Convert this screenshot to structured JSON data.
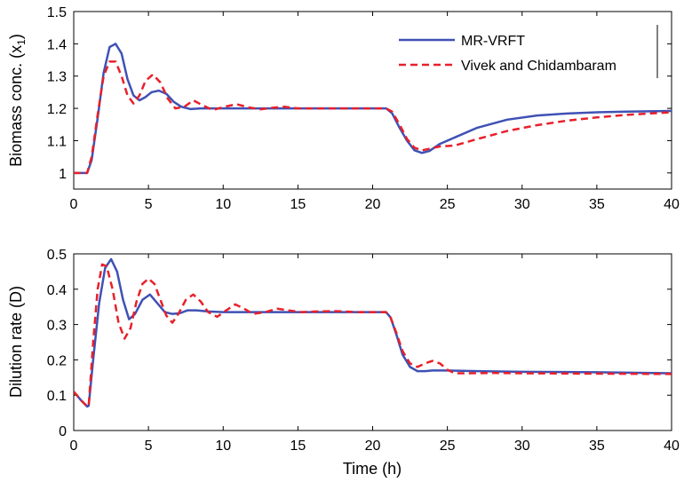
{
  "chart_data": [
    {
      "type": "line",
      "title": "",
      "xlabel": "",
      "ylabel": "Biomass conc. (x1)",
      "ylabel_main": "Biomass conc. (x",
      "ylabel_sub": "1",
      "ylabel_tail": ")",
      "xlim": [
        0,
        40
      ],
      "ylim": [
        0.95,
        1.5
      ],
      "xticks": [
        "0",
        "5",
        "10",
        "15",
        "20",
        "25",
        "30",
        "35",
        "40"
      ],
      "yticks": [
        "1",
        "1.1",
        "1.2",
        "1.3",
        "1.4",
        "1.5"
      ],
      "grid": false,
      "legend_position": "top-right",
      "series": [
        {
          "name": "MR-VRFT",
          "color": "#3f51b5",
          "style": "solid",
          "x": [
            0,
            0.9,
            1.2,
            1.6,
            2.0,
            2.4,
            2.8,
            3.2,
            3.6,
            4.0,
            4.4,
            4.8,
            5.2,
            5.7,
            6.2,
            6.7,
            7.2,
            7.8,
            8.5,
            10,
            12,
            15,
            18,
            20.9,
            21.3,
            21.8,
            22.3,
            22.8,
            23.3,
            23.8,
            24.5,
            25.5,
            27,
            29,
            31,
            33,
            35,
            37,
            40
          ],
          "y": [
            1.0,
            1.0,
            1.04,
            1.17,
            1.31,
            1.39,
            1.4,
            1.37,
            1.29,
            1.24,
            1.225,
            1.235,
            1.25,
            1.255,
            1.245,
            1.22,
            1.205,
            1.198,
            1.2,
            1.2,
            1.2,
            1.2,
            1.2,
            1.2,
            1.185,
            1.14,
            1.1,
            1.07,
            1.062,
            1.068,
            1.09,
            1.11,
            1.14,
            1.165,
            1.178,
            1.184,
            1.188,
            1.19,
            1.192
          ]
        },
        {
          "name": "Vivek and Chidambaram",
          "color": "#e8202a",
          "style": "dashed",
          "x": [
            0,
            0.9,
            1.2,
            1.6,
            2.0,
            2.4,
            2.8,
            3.2,
            3.6,
            4.0,
            4.4,
            4.8,
            5.3,
            5.8,
            6.3,
            6.8,
            7.4,
            8.0,
            8.6,
            9.3,
            10.1,
            10.9,
            11.7,
            12.5,
            13.3,
            14.1,
            15.0,
            16.5,
            18,
            20.9,
            21.3,
            21.8,
            22.3,
            22.8,
            23.3,
            23.8,
            24.5,
            25.5,
            27,
            29,
            31,
            33,
            35,
            37,
            40
          ],
          "y": [
            1.0,
            1.0,
            1.05,
            1.18,
            1.3,
            1.345,
            1.345,
            1.3,
            1.24,
            1.215,
            1.24,
            1.285,
            1.305,
            1.28,
            1.23,
            1.2,
            1.205,
            1.225,
            1.21,
            1.195,
            1.205,
            1.213,
            1.203,
            1.197,
            1.202,
            1.205,
            1.2,
            1.2,
            1.2,
            1.2,
            1.19,
            1.15,
            1.105,
            1.078,
            1.07,
            1.075,
            1.082,
            1.085,
            1.105,
            1.13,
            1.148,
            1.162,
            1.172,
            1.18,
            1.188
          ]
        }
      ]
    },
    {
      "type": "line",
      "title": "",
      "xlabel": "Time (h)",
      "ylabel": "Dilution rate (D)",
      "xlim": [
        0,
        40
      ],
      "ylim": [
        0,
        0.5
      ],
      "xticks": [
        "0",
        "5",
        "10",
        "15",
        "20",
        "25",
        "30",
        "35",
        "40"
      ],
      "yticks": [
        "0",
        "0.1",
        "0.2",
        "0.3",
        "0.4",
        "0.5"
      ],
      "grid": false,
      "series": [
        {
          "name": "MR-VRFT",
          "color": "#3f51b5",
          "style": "solid",
          "x": [
            0,
            0.5,
            0.9,
            1.0,
            1.3,
            1.7,
            2.1,
            2.5,
            2.9,
            3.3,
            3.7,
            4.1,
            4.6,
            5.1,
            5.6,
            6.1,
            6.6,
            7.1,
            7.6,
            8.2,
            9,
            10,
            12,
            15,
            18,
            20.9,
            21.2,
            21.6,
            22.0,
            22.5,
            23.0,
            23.5,
            24.0,
            25,
            27,
            30,
            35,
            40
          ],
          "y": [
            0.11,
            0.085,
            0.068,
            0.07,
            0.2,
            0.36,
            0.46,
            0.485,
            0.45,
            0.37,
            0.315,
            0.33,
            0.37,
            0.385,
            0.36,
            0.335,
            0.33,
            0.332,
            0.34,
            0.34,
            0.337,
            0.335,
            0.335,
            0.335,
            0.335,
            0.335,
            0.32,
            0.27,
            0.215,
            0.18,
            0.168,
            0.168,
            0.17,
            0.17,
            0.168,
            0.166,
            0.165,
            0.162
          ]
        },
        {
          "name": "Vivek and Chidambaram",
          "color": "#e8202a",
          "style": "dashed",
          "x": [
            0,
            0.5,
            0.9,
            1.0,
            1.3,
            1.6,
            1.9,
            2.2,
            2.6,
            3.0,
            3.4,
            3.8,
            4.2,
            4.6,
            5.0,
            5.4,
            5.8,
            6.2,
            6.6,
            7.0,
            7.5,
            8.0,
            8.5,
            9.0,
            9.6,
            10.2,
            10.8,
            11.4,
            12.0,
            12.8,
            13.6,
            14.4,
            15.2,
            16.2,
            17.5,
            19,
            20.9,
            21.2,
            21.6,
            22.0,
            22.5,
            23.0,
            23.5,
            24.0,
            24.5,
            25.0,
            25.5,
            26.5,
            28,
            30,
            35,
            40
          ],
          "y": [
            0.11,
            0.085,
            0.068,
            0.07,
            0.25,
            0.4,
            0.47,
            0.465,
            0.4,
            0.305,
            0.26,
            0.29,
            0.365,
            0.415,
            0.43,
            0.415,
            0.37,
            0.325,
            0.305,
            0.33,
            0.37,
            0.385,
            0.365,
            0.335,
            0.322,
            0.34,
            0.357,
            0.345,
            0.33,
            0.335,
            0.345,
            0.34,
            0.335,
            0.337,
            0.338,
            0.335,
            0.335,
            0.32,
            0.275,
            0.225,
            0.19,
            0.18,
            0.19,
            0.197,
            0.19,
            0.172,
            0.162,
            0.162,
            0.163,
            0.162,
            0.161,
            0.16
          ]
        }
      ]
    }
  ]
}
